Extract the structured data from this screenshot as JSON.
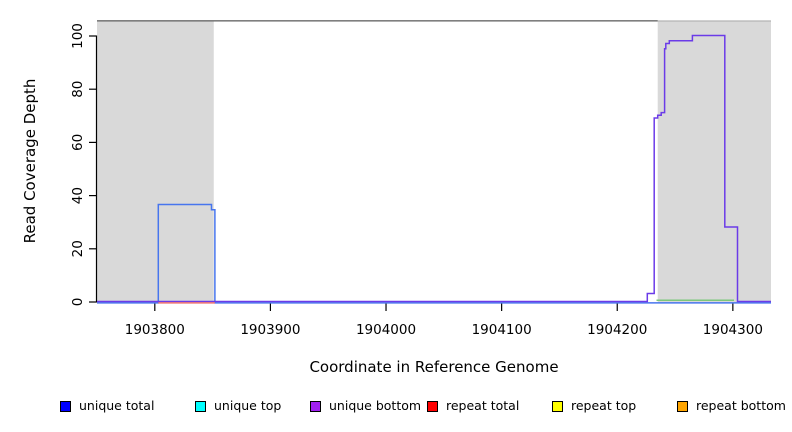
{
  "chart_data": {
    "type": "line",
    "subtype": "step-coverage",
    "title": "",
    "xlabel": "Coordinate in Reference Genome",
    "ylabel": "Read Coverage Depth",
    "xlim": [
      1903750,
      1904333
    ],
    "ylim": [
      0,
      106
    ],
    "xticks": [
      1903800,
      1903900,
      1904000,
      1904100,
      1904200,
      1904300
    ],
    "yticks": [
      0,
      20,
      40,
      60,
      80,
      100
    ],
    "grid": false,
    "legend_position": "bottom",
    "colors": {
      "shaded_region": "#d9d9d9",
      "region_top_border": "#b5b5b5",
      "top_rule": "#7f7f7f",
      "axis": "#000000"
    },
    "shaded_regions": [
      {
        "name": "repeat-region-left",
        "x0": 1903750,
        "x1": 1903851
      },
      {
        "name": "repeat-region-right",
        "x0": 1904235,
        "x1": 1904333
      }
    ],
    "top_rule": {
      "x0": 1903750,
      "x1": 1904235
    },
    "series": [
      {
        "name": "unique total",
        "color": "#4775ee",
        "points": [
          [
            1903750,
            0
          ],
          [
            1903803,
            0
          ],
          [
            1903803,
            37
          ],
          [
            1903849,
            37
          ],
          [
            1903849,
            35
          ],
          [
            1903852,
            35
          ],
          [
            1903852,
            0
          ],
          [
            1904333,
            0
          ]
        ]
      },
      {
        "name": "unique bottom",
        "color": "#6b3be8",
        "points": [
          [
            1903750,
            0
          ],
          [
            1904226,
            0
          ],
          [
            1904226,
            3
          ],
          [
            1904232,
            3
          ],
          [
            1904232,
            69
          ],
          [
            1904235,
            69
          ],
          [
            1904235,
            70
          ],
          [
            1904238,
            70
          ],
          [
            1904238,
            71
          ],
          [
            1904241,
            71
          ],
          [
            1904241,
            95
          ],
          [
            1904242,
            95
          ],
          [
            1904242,
            97
          ],
          [
            1904245,
            97
          ],
          [
            1904245,
            98
          ],
          [
            1904265,
            98
          ],
          [
            1904265,
            100
          ],
          [
            1904293,
            100
          ],
          [
            1904293,
            28
          ],
          [
            1904304,
            28
          ],
          [
            1904304,
            0
          ],
          [
            1904333,
            0
          ]
        ]
      },
      {
        "name": "repeat total zero segment",
        "color": "#ee7272",
        "points": [
          [
            1903803,
            0
          ],
          [
            1903852,
            0
          ]
        ]
      },
      {
        "name": "green zero segment",
        "color": "#7cc87c",
        "points": [
          [
            1904234,
            0
          ],
          [
            1904301,
            0
          ]
        ]
      }
    ],
    "legend": [
      {
        "label": "unique total",
        "color": "#0000ff"
      },
      {
        "label": "unique top",
        "color": "#00ffff"
      },
      {
        "label": "unique bottom",
        "color": "#a020f0"
      },
      {
        "label": "repeat total",
        "color": "#ff0000"
      },
      {
        "label": "repeat top",
        "color": "#ffff00"
      },
      {
        "label": "repeat bottom",
        "color": "#ffa500"
      }
    ]
  }
}
